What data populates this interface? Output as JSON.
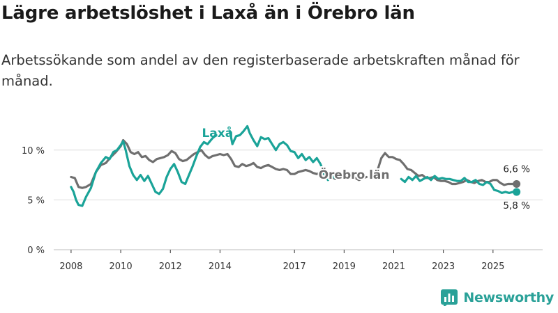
{
  "title": "Lägre arbetslöshet i Laxå än i Örebro län",
  "subtitle": "Arbetssökande som andel av den registerbaserade arbetskraften månad för månad.",
  "brand": "Newsworthy",
  "colors": {
    "laxa": "#1aa398",
    "orebro": "#6f6f6f",
    "grid": "#dcdcdc",
    "brand": "#2aa198"
  },
  "chart_data": {
    "type": "line",
    "title": "Lägre arbetslöshet i Laxå än i Örebro län",
    "xlabel": "",
    "ylabel": "",
    "xlim": [
      2007.3,
      2027.0
    ],
    "ylim": [
      0,
      12.5
    ],
    "x_ticks": [
      {
        "value": 2008,
        "label": "2008"
      },
      {
        "value": 2010,
        "label": "2010"
      },
      {
        "value": 2012,
        "label": "2012"
      },
      {
        "value": 2014,
        "label": "2014"
      },
      {
        "value": 2017,
        "label": "2017"
      },
      {
        "value": 2019,
        "label": "2019"
      },
      {
        "value": 2021,
        "label": "2021"
      },
      {
        "value": 2023,
        "label": "2023"
      },
      {
        "value": 2025,
        "label": "2025"
      }
    ],
    "y_ticks": [
      {
        "value": 0,
        "label": "0 %"
      },
      {
        "value": 5,
        "label": "5 %"
      },
      {
        "value": 10,
        "label": "10 %"
      }
    ],
    "series": [
      {
        "name": "Laxå",
        "label": "Laxå",
        "end_label": "5,8 %",
        "color": "#1aa398",
        "points": [
          [
            2008.0,
            6.3
          ],
          [
            2008.1,
            5.8
          ],
          [
            2008.2,
            5.0
          ],
          [
            2008.3,
            4.5
          ],
          [
            2008.45,
            4.4
          ],
          [
            2008.6,
            5.3
          ],
          [
            2008.8,
            6.2
          ],
          [
            2009.0,
            7.8
          ],
          [
            2009.2,
            8.7
          ],
          [
            2009.4,
            9.3
          ],
          [
            2009.55,
            9.1
          ],
          [
            2009.7,
            9.8
          ],
          [
            2009.85,
            10.0
          ],
          [
            2010.0,
            10.5
          ],
          [
            2010.1,
            10.9
          ],
          [
            2010.2,
            10.0
          ],
          [
            2010.35,
            8.4
          ],
          [
            2010.5,
            7.5
          ],
          [
            2010.65,
            7.0
          ],
          [
            2010.8,
            7.5
          ],
          [
            2010.95,
            6.9
          ],
          [
            2011.1,
            7.4
          ],
          [
            2011.25,
            6.6
          ],
          [
            2011.4,
            5.8
          ],
          [
            2011.55,
            5.6
          ],
          [
            2011.7,
            6.1
          ],
          [
            2011.85,
            7.3
          ],
          [
            2012.0,
            8.1
          ],
          [
            2012.15,
            8.6
          ],
          [
            2012.3,
            7.8
          ],
          [
            2012.45,
            6.8
          ],
          [
            2012.6,
            6.6
          ],
          [
            2012.75,
            7.5
          ],
          [
            2012.9,
            8.4
          ],
          [
            2013.05,
            9.4
          ],
          [
            2013.2,
            10.3
          ],
          [
            2013.35,
            10.8
          ],
          [
            2013.5,
            10.6
          ],
          [
            2013.7,
            11.2
          ],
          [
            2013.85,
            11.5
          ]
        ],
        "points_b": [
          [
            2014.4,
            11.9
          ],
          [
            2014.5,
            10.6
          ],
          [
            2014.65,
            11.4
          ],
          [
            2014.8,
            11.5
          ],
          [
            2014.95,
            11.9
          ],
          [
            2015.1,
            12.4
          ],
          [
            2015.2,
            11.7
          ],
          [
            2015.35,
            11.0
          ],
          [
            2015.5,
            10.4
          ],
          [
            2015.65,
            11.3
          ],
          [
            2015.8,
            11.1
          ],
          [
            2015.95,
            11.2
          ],
          [
            2016.1,
            10.6
          ],
          [
            2016.25,
            10.0
          ],
          [
            2016.4,
            10.6
          ],
          [
            2016.55,
            10.8
          ],
          [
            2016.7,
            10.5
          ],
          [
            2016.85,
            9.9
          ],
          [
            2017.0,
            9.8
          ],
          [
            2017.15,
            9.2
          ],
          [
            2017.3,
            9.6
          ],
          [
            2017.45,
            9.0
          ],
          [
            2017.6,
            9.3
          ],
          [
            2017.75,
            8.8
          ],
          [
            2017.9,
            9.2
          ],
          [
            2018.05,
            8.6
          ],
          [
            2018.2,
            7.6
          ],
          [
            2018.35,
            7.0
          ],
          [
            2018.5,
            7.4
          ],
          [
            2018.65,
            7.2
          ],
          [
            2018.8,
            7.4
          ],
          [
            2018.95,
            7.3
          ],
          [
            2019.05,
            7.2
          ]
        ],
        "points_c": [
          [
            2021.3,
            7.1
          ],
          [
            2021.45,
            6.8
          ],
          [
            2021.6,
            7.3
          ],
          [
            2021.75,
            7.0
          ],
          [
            2021.9,
            7.4
          ],
          [
            2022.05,
            6.9
          ],
          [
            2022.2,
            7.1
          ],
          [
            2022.35,
            7.3
          ],
          [
            2022.5,
            7.0
          ],
          [
            2022.65,
            7.4
          ],
          [
            2022.8,
            7.1
          ],
          [
            2022.95,
            7.2
          ],
          [
            2023.1,
            7.1
          ],
          [
            2023.25,
            7.1
          ],
          [
            2023.4,
            7.0
          ],
          [
            2023.55,
            6.9
          ],
          [
            2023.7,
            6.9
          ],
          [
            2023.85,
            7.2
          ],
          [
            2024.0,
            6.8
          ],
          [
            2024.15,
            6.8
          ],
          [
            2024.3,
            7.0
          ],
          [
            2024.45,
            6.6
          ],
          [
            2024.6,
            6.5
          ],
          [
            2024.75,
            6.8
          ],
          [
            2024.9,
            6.6
          ],
          [
            2025.05,
            6.0
          ],
          [
            2025.2,
            5.9
          ],
          [
            2025.35,
            5.7
          ],
          [
            2025.5,
            5.8
          ],
          [
            2025.65,
            5.7
          ],
          [
            2025.8,
            5.8
          ],
          [
            2025.95,
            5.8
          ]
        ]
      },
      {
        "name": "Örebro län",
        "label": "Örebro län",
        "end_label": "6,6 %",
        "color": "#6f6f6f",
        "points": [
          [
            2008.0,
            7.3
          ],
          [
            2008.15,
            7.2
          ],
          [
            2008.3,
            6.3
          ],
          [
            2008.45,
            6.2
          ],
          [
            2008.6,
            6.3
          ],
          [
            2008.8,
            6.6
          ],
          [
            2009.0,
            7.8
          ],
          [
            2009.2,
            8.5
          ],
          [
            2009.4,
            8.7
          ],
          [
            2009.6,
            9.3
          ],
          [
            2009.8,
            9.8
          ],
          [
            2010.0,
            10.4
          ],
          [
            2010.1,
            11.0
          ],
          [
            2010.25,
            10.6
          ],
          [
            2010.4,
            9.8
          ],
          [
            2010.55,
            9.6
          ],
          [
            2010.7,
            9.8
          ],
          [
            2010.85,
            9.3
          ],
          [
            2011.0,
            9.4
          ],
          [
            2011.15,
            9.0
          ],
          [
            2011.3,
            8.8
          ],
          [
            2011.45,
            9.1
          ],
          [
            2011.6,
            9.2
          ],
          [
            2011.75,
            9.3
          ],
          [
            2011.9,
            9.5
          ],
          [
            2012.05,
            9.9
          ],
          [
            2012.2,
            9.7
          ],
          [
            2012.35,
            9.1
          ],
          [
            2012.5,
            8.9
          ],
          [
            2012.65,
            9.0
          ],
          [
            2012.8,
            9.3
          ],
          [
            2012.95,
            9.6
          ],
          [
            2013.1,
            9.8
          ],
          [
            2013.25,
            10.0
          ],
          [
            2013.4,
            9.5
          ],
          [
            2013.55,
            9.2
          ],
          [
            2013.7,
            9.4
          ],
          [
            2013.85,
            9.5
          ],
          [
            2014.0,
            9.6
          ],
          [
            2014.15,
            9.5
          ],
          [
            2014.3,
            9.6
          ],
          [
            2014.45,
            9.1
          ],
          [
            2014.6,
            8.4
          ],
          [
            2014.75,
            8.3
          ],
          [
            2014.9,
            8.6
          ],
          [
            2015.05,
            8.4
          ],
          [
            2015.2,
            8.5
          ],
          [
            2015.35,
            8.7
          ],
          [
            2015.5,
            8.3
          ],
          [
            2015.65,
            8.2
          ],
          [
            2015.8,
            8.4
          ],
          [
            2015.95,
            8.5
          ],
          [
            2016.1,
            8.3
          ],
          [
            2016.25,
            8.1
          ],
          [
            2016.4,
            8.0
          ],
          [
            2016.55,
            8.1
          ],
          [
            2016.7,
            8.0
          ],
          [
            2016.85,
            7.6
          ],
          [
            2017.0,
            7.6
          ],
          [
            2017.15,
            7.8
          ],
          [
            2017.3,
            7.9
          ],
          [
            2017.45,
            8.0
          ],
          [
            2017.6,
            7.9
          ],
          [
            2017.75,
            7.7
          ],
          [
            2017.9,
            7.6
          ],
          [
            2018.05,
            7.7
          ],
          [
            2018.2,
            7.6
          ],
          [
            2018.35,
            7.4
          ],
          [
            2018.5,
            7.3
          ],
          [
            2018.65,
            7.1
          ]
        ],
        "points_b": [
          [
            2019.3,
            7.1
          ],
          [
            2019.45,
            7.2
          ],
          [
            2019.6,
            7.0
          ],
          [
            2019.75,
            7.2
          ],
          [
            2019.9,
            7.3
          ]
        ],
        "points_c": [
          [
            2020.35,
            8.0
          ],
          [
            2020.5,
            9.2
          ],
          [
            2020.65,
            9.7
          ],
          [
            2020.8,
            9.3
          ],
          [
            2020.95,
            9.3
          ],
          [
            2021.1,
            9.1
          ],
          [
            2021.25,
            9.0
          ],
          [
            2021.4,
            8.6
          ],
          [
            2021.55,
            8.1
          ],
          [
            2021.7,
            8.0
          ],
          [
            2021.85,
            7.7
          ],
          [
            2022.0,
            7.4
          ],
          [
            2022.15,
            7.5
          ],
          [
            2022.3,
            7.2
          ],
          [
            2022.45,
            7.2
          ],
          [
            2022.6,
            7.3
          ],
          [
            2022.75,
            7.0
          ],
          [
            2022.9,
            6.9
          ],
          [
            2023.05,
            6.9
          ],
          [
            2023.2,
            6.8
          ],
          [
            2023.35,
            6.6
          ],
          [
            2023.5,
            6.6
          ],
          [
            2023.65,
            6.7
          ],
          [
            2023.8,
            6.8
          ],
          [
            2023.95,
            7.0
          ],
          [
            2024.1,
            6.8
          ],
          [
            2024.25,
            6.7
          ],
          [
            2024.4,
            6.9
          ],
          [
            2024.55,
            7.0
          ],
          [
            2024.7,
            6.8
          ],
          [
            2024.85,
            6.8
          ],
          [
            2025.0,
            7.0
          ],
          [
            2025.15,
            7.0
          ],
          [
            2025.3,
            6.7
          ],
          [
            2025.45,
            6.5
          ],
          [
            2025.6,
            6.6
          ],
          [
            2025.75,
            6.6
          ],
          [
            2025.95,
            6.6
          ]
        ]
      }
    ]
  }
}
